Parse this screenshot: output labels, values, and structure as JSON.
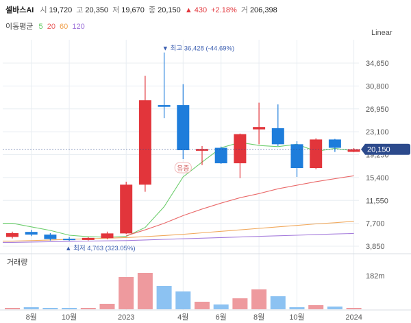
{
  "header": {
    "name": "셀바스AI",
    "open_label": "시",
    "open": "19,720",
    "high_label": "고",
    "high": "20,350",
    "low_label": "저",
    "low": "19,670",
    "close_label": "종",
    "close": "20,150",
    "change_arrow": "▲",
    "change": "430",
    "change_pct": "+2.18%",
    "volume_label": "거",
    "volume": "206,398"
  },
  "ma_legend": {
    "title": "이동평균",
    "items": [
      {
        "label": "5",
        "color": "#5cc85c"
      },
      {
        "label": "20",
        "color": "#e85a5a"
      },
      {
        "label": "60",
        "color": "#f0a04b"
      },
      {
        "label": "120",
        "color": "#9b6ed8"
      }
    ]
  },
  "scale_label": "Linear",
  "colors": {
    "up": "#e2353b",
    "down": "#1e7ddb",
    "vol_up": "#ee9a9e",
    "vol_down": "#8cc2f2",
    "grid": "#e8edf2",
    "axis_text": "#555555",
    "price_tag": "#2c4a8c",
    "annotation": "#3b5eb0"
  },
  "chart_data": {
    "type": "candlestick",
    "interval": "monthly",
    "price_axis": {
      "ticks": [
        3850,
        7700,
        11550,
        15400,
        19250,
        23100,
        26950,
        30800,
        34650
      ],
      "tick_labels": [
        "3,850",
        "7,700",
        "11,550",
        "15,400",
        "19,250",
        "23,100",
        "26,950",
        "30,800",
        "34,650"
      ]
    },
    "x_axis": {
      "labels": [
        {
          "text": "8월",
          "index": 1
        },
        {
          "text": "10월",
          "index": 3
        },
        {
          "text": "2023",
          "index": 6
        },
        {
          "text": "4월",
          "index": 9
        },
        {
          "text": "6월",
          "index": 11
        },
        {
          "text": "8월",
          "index": 13
        },
        {
          "text": "10월",
          "index": 15
        },
        {
          "text": "2024",
          "index": 18
        }
      ]
    },
    "candles": [
      {
        "o": 5400,
        "h": 6300,
        "l": 5150,
        "c": 6050
      },
      {
        "o": 6250,
        "h": 6600,
        "l": 5550,
        "c": 5800
      },
      {
        "o": 5800,
        "h": 6050,
        "l": 4800,
        "c": 5050
      },
      {
        "o": 5100,
        "h": 5400,
        "l": 4763,
        "c": 4950
      },
      {
        "o": 4900,
        "h": 5400,
        "l": 4800,
        "c": 5250
      },
      {
        "o": 5200,
        "h": 6300,
        "l": 5000,
        "c": 6000
      },
      {
        "o": 6000,
        "h": 14700,
        "l": 5900,
        "c": 14200
      },
      {
        "o": 14200,
        "h": 32500,
        "l": 13000,
        "c": 28400
      },
      {
        "o": 27600,
        "h": 36428,
        "l": 25400,
        "c": 27300
      },
      {
        "o": 27600,
        "h": 31100,
        "l": 18500,
        "c": 20000
      },
      {
        "o": 19900,
        "h": 20700,
        "l": 17500,
        "c": 20200
      },
      {
        "o": 20400,
        "h": 20600,
        "l": 17700,
        "c": 17800
      },
      {
        "o": 17800,
        "h": 22800,
        "l": 15300,
        "c": 22700
      },
      {
        "o": 23500,
        "h": 28000,
        "l": 21000,
        "c": 23900
      },
      {
        "o": 23700,
        "h": 27700,
        "l": 20700,
        "c": 21000
      },
      {
        "o": 21000,
        "h": 21500,
        "l": 15500,
        "c": 17000
      },
      {
        "o": 17000,
        "h": 22000,
        "l": 16800,
        "c": 21800
      },
      {
        "o": 21800,
        "h": 21900,
        "l": 19700,
        "c": 20400
      },
      {
        "o": 19720,
        "h": 20350,
        "l": 19670,
        "c": 20150
      }
    ],
    "ma_series": [
      {
        "label": "5",
        "values": [
          7700,
          7100,
          6500,
          5700,
          5450,
          5350,
          5500,
          7000,
          10500,
          15500,
          18000,
          20400,
          21300,
          20800,
          20600,
          21000,
          19800,
          20300,
          19900
        ]
      },
      {
        "label": "20",
        "values": [
          null,
          null,
          null,
          null,
          null,
          null,
          5600,
          6600,
          7700,
          9000,
          10100,
          11100,
          12000,
          12700,
          13500,
          14100,
          14700,
          15200,
          15700
        ]
      },
      {
        "label": "60",
        "values": [
          4700,
          4800,
          4900,
          5000,
          5100,
          5200,
          5300,
          5450,
          5650,
          5850,
          6100,
          6350,
          6600,
          6850,
          7100,
          7350,
          7600,
          7800,
          8050
        ]
      },
      {
        "label": "120",
        "values": [
          4500,
          4550,
          4600,
          4650,
          4700,
          4750,
          4800,
          4900,
          5000,
          5100,
          5200,
          5300,
          5400,
          5500,
          5600,
          5700,
          5800,
          5900,
          6000
        ]
      }
    ],
    "volume": {
      "label": "거래량",
      "tick_label": "182m",
      "values": [
        1,
        3,
        1,
        1,
        1,
        8,
        47,
        53,
        34,
        26,
        11,
        7,
        16,
        29,
        19,
        3,
        6,
        4,
        1
      ]
    },
    "annotations": {
      "high": {
        "arrow": "▼",
        "text": "최고 36,428 (-44.69%)",
        "value": 36428,
        "index": 8
      },
      "low": {
        "arrow": "▲",
        "text": "최저 4,763 (323.05%)",
        "value": 4763,
        "index": 3
      },
      "badge": {
        "text": "유증",
        "index": 9
      },
      "last_price": {
        "text": "20,150",
        "value": 20150
      }
    }
  }
}
